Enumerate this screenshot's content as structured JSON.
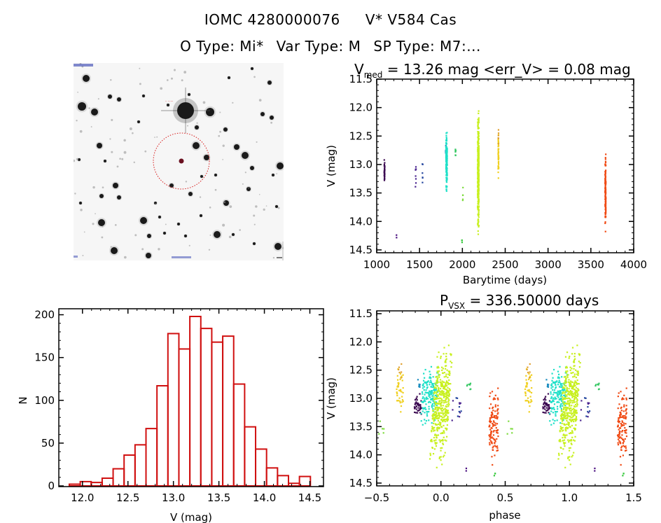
{
  "header": {
    "object_id": "IOMC 4280000076",
    "star_name": "V* V584 Cas",
    "otype_label": "O Type: Mi*",
    "vartype_label": "Var Type: M",
    "sptype_label": "SP Type: M7:..."
  },
  "sky_image": {
    "description": "finder chart",
    "target_circle_color": "#d81b1b"
  },
  "chart_data": [
    {
      "id": "light_curve",
      "type": "scatter",
      "title_main": "V",
      "title_sub": "med",
      "title_rest": " = 13.26 mag <err_V> = 0.08 mag",
      "xlabel": "Barytime (days)",
      "ylabel": "V (mag)",
      "xlim": [
        1000,
        4000
      ],
      "ylim": [
        14.55,
        11.5
      ],
      "y_inverted": true,
      "xticks": [
        1000,
        1500,
        2000,
        2500,
        3000,
        3500,
        4000
      ],
      "xtick_labels": [
        "1000",
        "1500",
        "2000",
        "2500",
        "3000",
        "3500",
        "4000"
      ],
      "yticks": [
        11.5,
        12.0,
        12.5,
        13.0,
        13.5,
        14.0,
        14.5
      ],
      "ytick_labels": [
        "11.5",
        "12.0",
        "12.5",
        "13.0",
        "13.5",
        "14.0",
        "14.5"
      ],
      "clusters": [
        {
          "t": 1090,
          "dt": 6,
          "vmin": 12.85,
          "vmax": 13.4,
          "n": 40,
          "color": "#3c0a52",
          "phase": -0.18
        },
        {
          "t": 1230,
          "dt": 2,
          "vmin": 14.15,
          "vmax": 14.3,
          "n": 2,
          "color": "#4a1080",
          "phase": 0.2
        },
        {
          "t": 1455,
          "dt": 8,
          "vmin": 12.95,
          "vmax": 13.4,
          "n": 8,
          "color": "#4b2590",
          "phase": 0.12
        },
        {
          "t": 1535,
          "dt": 6,
          "vmin": 12.85,
          "vmax": 13.45,
          "n": 6,
          "color": "#23459e",
          "phase": 0.135
        },
        {
          "t": 1805,
          "dt": 3,
          "vmin": 12.65,
          "vmax": 12.8,
          "n": 8,
          "color": "#1f8fc0",
          "phase": -0.17
        },
        {
          "t": 1815,
          "dt": 14,
          "vmin": 12.25,
          "vmax": 13.6,
          "n": 160,
          "color": "#1fe0c8",
          "phase": -0.085
        },
        {
          "t": 1920,
          "dt": 4,
          "vmin": 12.65,
          "vmax": 12.85,
          "n": 8,
          "color": "#37c864",
          "phase": 0.22
        },
        {
          "t": 2005,
          "dt": 6,
          "vmin": 13.35,
          "vmax": 13.65,
          "n": 5,
          "color": "#7fdc40",
          "phase": -0.47
        },
        {
          "t": 1995,
          "dt": 2,
          "vmin": 14.32,
          "vmax": 14.38,
          "n": 3,
          "color": "#36c83c",
          "phase": 0.42
        },
        {
          "t": 2185,
          "dt": 14,
          "vmin": 11.85,
          "vmax": 14.4,
          "n": 420,
          "color": "#c8f020",
          "phase": 0.0
        },
        {
          "t": 2420,
          "dt": 6,
          "vmin": 12.35,
          "vmax": 13.3,
          "n": 40,
          "color": "#f0d020",
          "phase": -0.32
        },
        {
          "t": 2420,
          "dt": 4,
          "vmin": 12.35,
          "vmax": 12.7,
          "n": 6,
          "color": "#e0a030",
          "phase": -0.32
        },
        {
          "t": 3670,
          "dt": 8,
          "vmin": 12.7,
          "vmax": 14.3,
          "n": 120,
          "color": "#f04a14",
          "phase": 0.41
        }
      ]
    },
    {
      "id": "histogram",
      "type": "bar",
      "title": "",
      "xlabel": "V (mag)",
      "ylabel": "N",
      "xlim": [
        11.74,
        14.65
      ],
      "ylim": [
        0,
        207
      ],
      "xticks": [
        12.0,
        12.5,
        13.0,
        13.5,
        14.0,
        14.5
      ],
      "xtick_labels": [
        "12.0",
        "12.5",
        "13.0",
        "13.5",
        "14.0",
        "14.5"
      ],
      "yticks": [
        0,
        50,
        100,
        150,
        200
      ],
      "ytick_labels": [
        "0",
        "50",
        "100",
        "150",
        "200"
      ],
      "bin_start": 11.855,
      "bin_width": 0.1205,
      "values": [
        2,
        5,
        4,
        9,
        20,
        36,
        48,
        67,
        117,
        178,
        160,
        198,
        184,
        168,
        175,
        119,
        69,
        43,
        21,
        12,
        3,
        11
      ],
      "bar_color": "#d01010"
    },
    {
      "id": "phase_curve",
      "type": "scatter",
      "title_main": "P",
      "title_sub": "VSX",
      "title_rest": " = 336.50000 days",
      "xlabel": "phase",
      "ylabel": "V (mag)",
      "xlim": [
        -0.5,
        1.5
      ],
      "ylim": [
        14.55,
        11.45
      ],
      "y_inverted": true,
      "xticks": [
        -0.5,
        0.0,
        0.5,
        1.0,
        1.5
      ],
      "xtick_labels": [
        "−0.5",
        "0.0",
        "0.5",
        "1.0",
        "1.5"
      ],
      "yticks": [
        11.5,
        12.0,
        12.5,
        13.0,
        13.5,
        14.0,
        14.5
      ],
      "ytick_labels": [
        "11.5",
        "12.0",
        "12.5",
        "13.0",
        "13.5",
        "14.0",
        "14.5"
      ]
    }
  ]
}
